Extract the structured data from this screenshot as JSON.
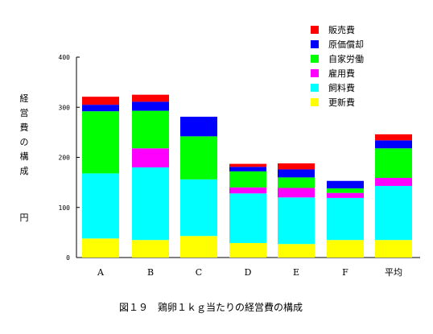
{
  "chart_data": {
    "type": "bar",
    "stacked": true,
    "title": "",
    "caption": "図１９　鶏卵１ｋｇ当たりの経営費の構成",
    "ylabel": "経営費の構成",
    "yunit": "円",
    "ylim": [
      0,
      400
    ],
    "yticks": [
      0,
      100,
      200,
      300,
      400
    ],
    "grid": false,
    "legend_position": "top-right",
    "categories": [
      "A",
      "B",
      "C",
      "D",
      "E",
      "F",
      "平均"
    ],
    "series": [
      {
        "name": "更新費",
        "color": "#ffff00",
        "values": [
          38,
          35,
          43,
          29,
          27,
          35,
          35
        ]
      },
      {
        "name": "飼料費",
        "color": "#00ffff",
        "values": [
          130,
          145,
          113,
          99,
          93,
          84,
          108
        ]
      },
      {
        "name": "雇用費",
        "color": "#ff00ff",
        "values": [
          0,
          38,
          0,
          12,
          19,
          10,
          16
        ]
      },
      {
        "name": "自家労働",
        "color": "#00ff00",
        "values": [
          124,
          75,
          86,
          32,
          21,
          9,
          59
        ]
      },
      {
        "name": "原価償却",
        "color": "#0000ff",
        "values": [
          13,
          18,
          39,
          9,
          16,
          15,
          16
        ]
      },
      {
        "name": "販売費",
        "color": "#ff0000",
        "values": [
          16,
          14,
          0,
          6,
          12,
          0,
          12
        ]
      }
    ],
    "legend_order": [
      "販売費",
      "原価償却",
      "自家労働",
      "雇用費",
      "飼料費",
      "更新費"
    ]
  }
}
